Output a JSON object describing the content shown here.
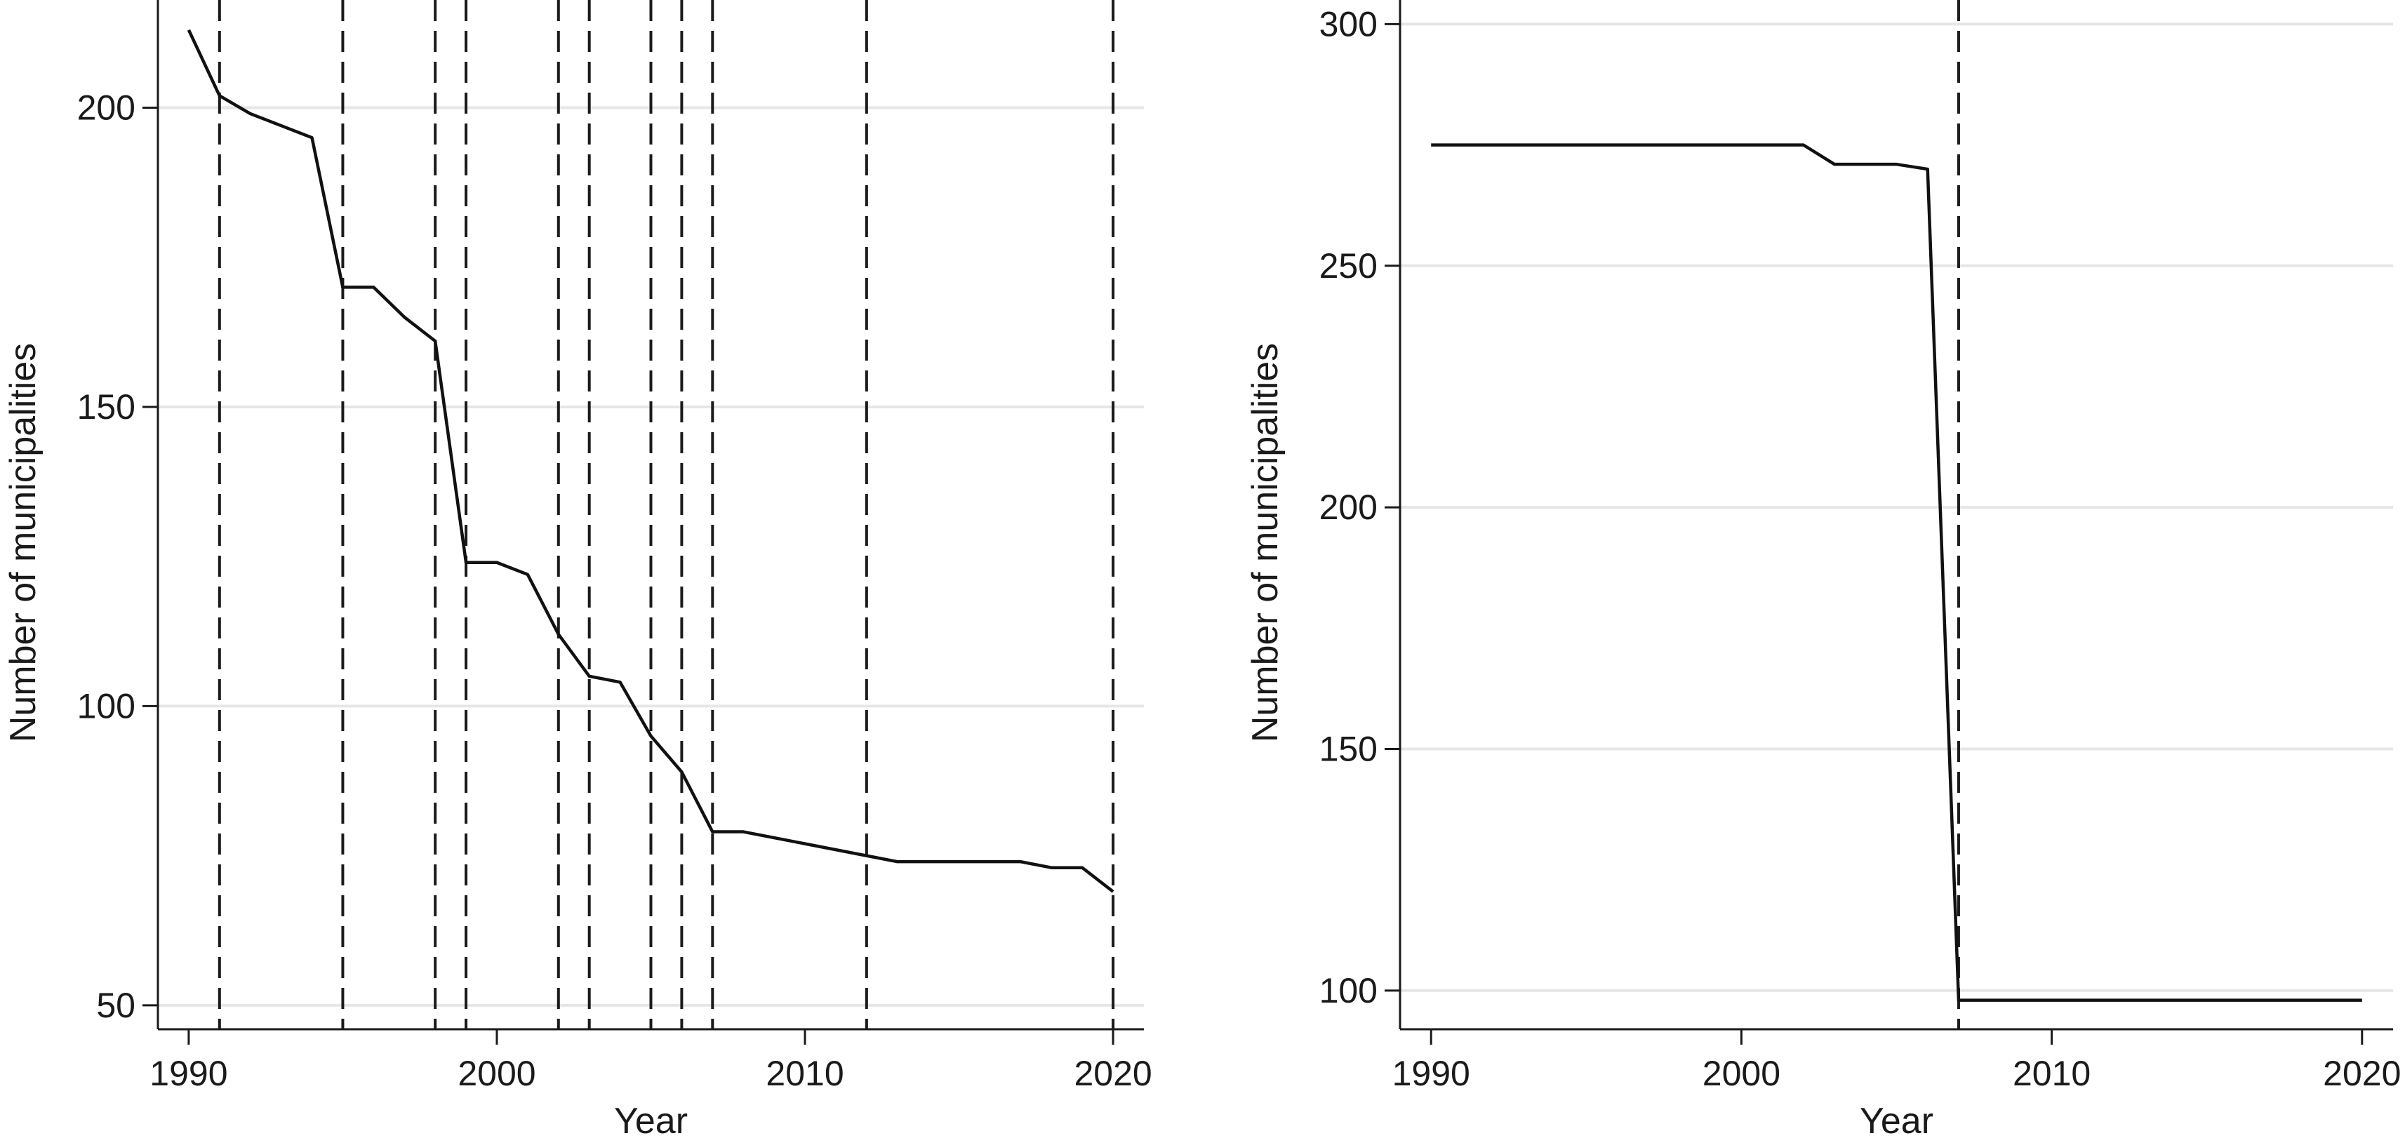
{
  "chart_data": [
    {
      "type": "line",
      "title": "",
      "xlabel": "Year",
      "ylabel": "Number of municipalities",
      "xlim": [
        1989,
        2021
      ],
      "ylim": [
        46,
        218
      ],
      "xticks": [
        1990,
        2000,
        2010,
        2020
      ],
      "yticks": [
        50,
        100,
        150,
        200
      ],
      "grid": "horizontal",
      "vlines": [
        1991,
        1995,
        1998,
        1999,
        2002,
        2003,
        2005,
        2006,
        2007,
        2012,
        2020
      ],
      "series": [
        {
          "x": [
            1990,
            1991,
            1992,
            1994,
            1995,
            1996,
            1997,
            1998,
            1999,
            2000,
            2001,
            2002,
            2003,
            2004,
            2005,
            2006,
            2007,
            2008,
            2013,
            2017,
            2018,
            2019,
            2020
          ],
          "y": [
            213,
            202,
            199,
            195,
            170,
            170,
            165,
            161,
            124,
            124,
            122,
            112,
            105,
            104,
            95,
            89,
            79,
            79,
            74,
            74,
            73,
            73,
            69
          ]
        }
      ]
    },
    {
      "type": "line",
      "title": "",
      "xlabel": "Year",
      "ylabel": "Number of municipalities",
      "xlim": [
        1989,
        2021
      ],
      "ylim": [
        92,
        305
      ],
      "xticks": [
        1990,
        2000,
        2010,
        2020
      ],
      "yticks": [
        100,
        150,
        200,
        250,
        300
      ],
      "grid": "horizontal",
      "vlines": [
        2007
      ],
      "series": [
        {
          "x": [
            1990,
            2002,
            2003,
            2005,
            2006,
            2007,
            2020
          ],
          "y": [
            275,
            275,
            271,
            271,
            270,
            98,
            98
          ]
        }
      ]
    }
  ]
}
